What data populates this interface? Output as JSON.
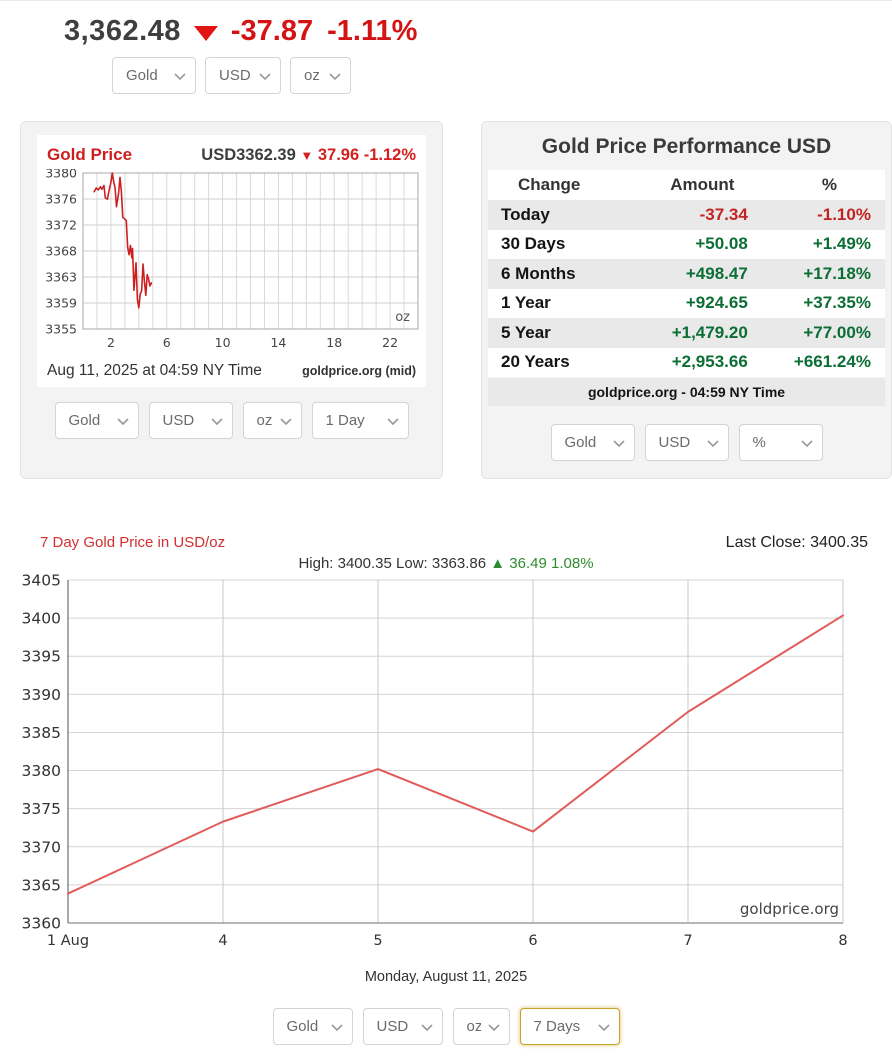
{
  "icons": {
    "down_triangle": "▼",
    "up_triangle": "▲"
  },
  "colors": {
    "negative_red": "#c22323",
    "positive_green": "#0c6e34",
    "quote_red": "#d41414",
    "intraday_line": "#cc2020",
    "weekly_line": "#e25b5b",
    "focused_select_border": "#c9a227"
  },
  "header": {
    "price": "3,362.48",
    "change_amount": "-37.87",
    "change_percent": "-1.11%",
    "selectors": {
      "metal": "Gold",
      "currency": "USD",
      "unit": "oz"
    }
  },
  "intraday_panel": {
    "title": "Gold Price",
    "quote_price": "USD3362.39",
    "quote_change": "37.96 -1.12%",
    "unit_label": "oz",
    "timestamp": "Aug 11, 2025 at 04:59 NY Time",
    "source": "goldprice.org (mid)",
    "selectors": {
      "metal": "Gold",
      "currency": "USD",
      "unit": "oz",
      "range": "1 Day"
    }
  },
  "performance_panel": {
    "title": "Gold Price Performance USD",
    "columns": [
      "Change",
      "Amount",
      "%"
    ],
    "rows": [
      {
        "label": "Today",
        "amount": "-37.34",
        "percent": "-1.10%",
        "negative": true
      },
      {
        "label": "30 Days",
        "amount": "+50.08",
        "percent": "+1.49%",
        "negative": false
      },
      {
        "label": "6 Months",
        "amount": "+498.47",
        "percent": "+17.18%",
        "negative": false
      },
      {
        "label": "1 Year",
        "amount": "+924.65",
        "percent": "+37.35%",
        "negative": false
      },
      {
        "label": "5 Year",
        "amount": "+1,479.20",
        "percent": "+77.00%",
        "negative": false
      },
      {
        "label": "20 Years",
        "amount": "+2,953.66",
        "percent": "+661.24%",
        "negative": false
      }
    ],
    "footer": "goldprice.org - 04:59 NY Time",
    "selectors": {
      "metal": "Gold",
      "currency": "USD",
      "unit": "%"
    }
  },
  "weekly_section": {
    "title": "7 Day Gold Price in USD/oz",
    "last_close_label": "Last Close: 3400.35",
    "high_label": "High: 3400.35",
    "low_label": "Low: 3363.86",
    "change_text": "36.49 1.08%",
    "date_label": "Monday, August 11, 2025",
    "selectors": {
      "metal": "Gold",
      "currency": "USD",
      "unit": "oz",
      "range": "7 Days"
    }
  },
  "chart_data": [
    {
      "type": "line",
      "title": "Gold Price (1 Day intraday, USD/oz)",
      "x_unit": "hour, NY time",
      "x_range": [
        0,
        24
      ],
      "x_gridline_every": 1,
      "x_tick_labels": [
        2,
        6,
        10,
        14,
        18,
        22
      ],
      "ylim": [
        3355,
        3380
      ],
      "y_tick_labels": [
        3355,
        3359,
        3363,
        3368,
        3372,
        3376,
        3380
      ],
      "unit_label": "oz",
      "line_color": "#cc2020",
      "grid": true,
      "points": [
        [
          0.8,
          3377.0
        ],
        [
          0.95,
          3377.6
        ],
        [
          1.1,
          3377.3
        ],
        [
          1.25,
          3377.8
        ],
        [
          1.35,
          3377.4
        ],
        [
          1.5,
          3378.0
        ],
        [
          1.6,
          3376.0
        ],
        [
          1.75,
          3375.8
        ],
        [
          1.85,
          3377.0
        ],
        [
          2.0,
          3378.5
        ],
        [
          2.1,
          3380.0
        ],
        [
          2.2,
          3378.6
        ],
        [
          2.3,
          3377.6
        ],
        [
          2.4,
          3374.6
        ],
        [
          2.55,
          3376.8
        ],
        [
          2.65,
          3379.3
        ],
        [
          2.75,
          3377.0
        ],
        [
          2.85,
          3372.9
        ],
        [
          3.0,
          3372.6
        ],
        [
          3.1,
          3372.4
        ],
        [
          3.2,
          3368.1
        ],
        [
          3.3,
          3366.9
        ],
        [
          3.4,
          3368.4
        ],
        [
          3.5,
          3366.4
        ],
        [
          3.55,
          3367.9
        ],
        [
          3.65,
          3361.2
        ],
        [
          3.75,
          3364.1
        ],
        [
          3.8,
          3365.6
        ],
        [
          3.9,
          3359.7
        ],
        [
          4.0,
          3358.4
        ],
        [
          4.1,
          3360.6
        ],
        [
          4.2,
          3361.1
        ],
        [
          4.3,
          3365.4
        ],
        [
          4.4,
          3362.6
        ],
        [
          4.5,
          3360.4
        ],
        [
          4.6,
          3363.7
        ],
        [
          4.7,
          3363.0
        ],
        [
          4.8,
          3361.9
        ],
        [
          4.9,
          3362.4
        ]
      ]
    },
    {
      "type": "line",
      "title": "7 Day Gold Price in USD/oz",
      "categories": [
        "1 Aug",
        "4",
        "5",
        "6",
        "7",
        "8"
      ],
      "values": [
        3363.86,
        3373.3,
        3380.2,
        3372.0,
        3387.7,
        3400.35
      ],
      "ylim": [
        3360,
        3405
      ],
      "y_tick_step": 5,
      "high": 3400.35,
      "low": 3363.86,
      "change": 36.49,
      "change_percent": "1.08%",
      "last_close": 3400.35,
      "line_color": "#e25b5b",
      "grid": true,
      "legend": "none",
      "source_label": "goldprice.org"
    }
  ]
}
